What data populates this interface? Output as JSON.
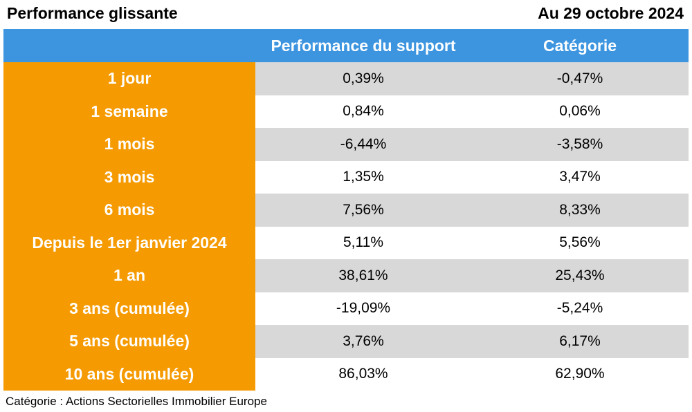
{
  "header": {
    "title": "Performance glissante",
    "date": "Au 29 octobre 2024"
  },
  "chart_data": {
    "type": "table",
    "columns": [
      "",
      "Performance du support",
      "Catégorie"
    ],
    "rows": [
      {
        "period": "1 jour",
        "support": "0,39%",
        "categorie": "-0,47%"
      },
      {
        "period": "1 semaine",
        "support": "0,84%",
        "categorie": "0,06%"
      },
      {
        "period": "1 mois",
        "support": "-6,44%",
        "categorie": "-3,58%"
      },
      {
        "period": "3 mois",
        "support": "1,35%",
        "categorie": "3,47%"
      },
      {
        "period": "6 mois",
        "support": "7,56%",
        "categorie": "8,33%"
      },
      {
        "period": "Depuis le 1er janvier 2024",
        "support": "5,11%",
        "categorie": "5,56%"
      },
      {
        "period": "1 an",
        "support": "38,61%",
        "categorie": "25,43%"
      },
      {
        "period": "3 ans (cumulée)",
        "support": "-19,09%",
        "categorie": "-5,24%"
      },
      {
        "period": "5 ans (cumulée)",
        "support": "3,76%",
        "categorie": "6,17%"
      },
      {
        "period": "10 ans (cumulée)",
        "support": "86,03%",
        "categorie": "62,90%"
      }
    ],
    "colors": {
      "header_bg": "#3d95e0",
      "period_bg": "#f59a00",
      "row_shade": "#d8d8d8",
      "row_plain": "#ffffff"
    }
  },
  "footnote": "Catégorie : Actions Sectorielles Immobilier Europe"
}
